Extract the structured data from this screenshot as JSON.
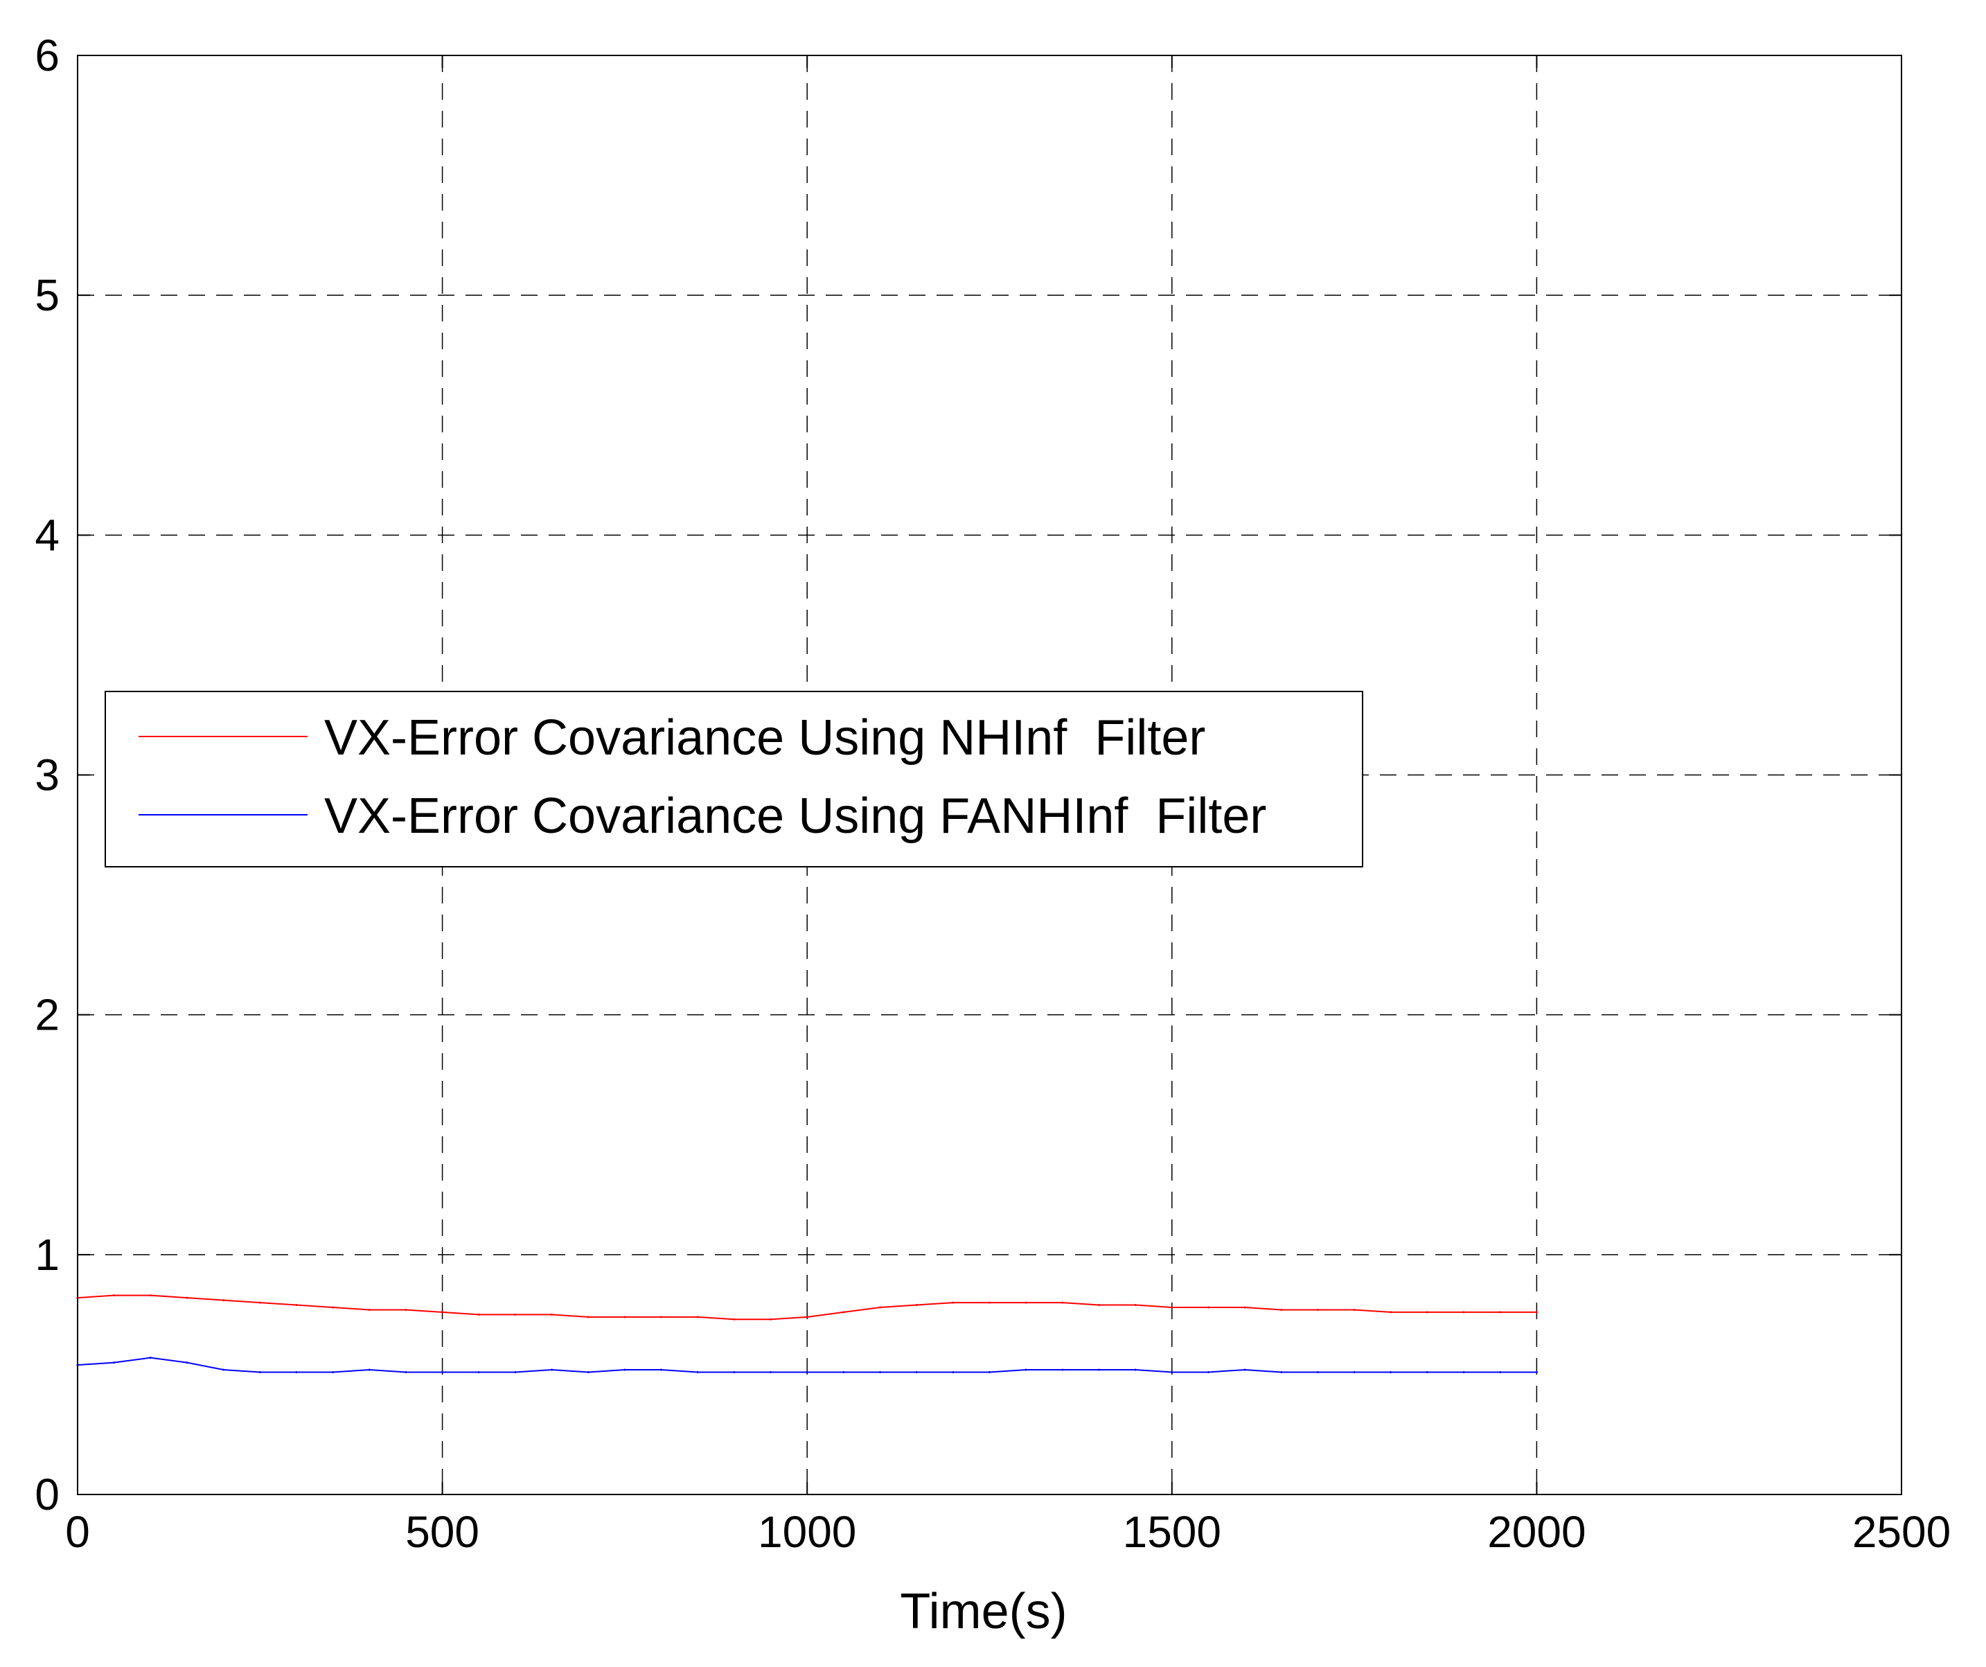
{
  "chart_data": {
    "type": "line",
    "title": "",
    "xlabel": "Time(s)",
    "ylabel": "",
    "xlim": [
      0,
      2500
    ],
    "ylim": [
      0,
      6
    ],
    "xticks": [
      0,
      500,
      1000,
      1500,
      2000,
      2500
    ],
    "yticks": [
      0,
      1,
      2,
      3,
      4,
      5,
      6
    ],
    "xtick_labels": [
      "0",
      "500",
      "1000",
      "1500",
      "2000",
      "2500"
    ],
    "ytick_labels": [
      "0",
      "1",
      "2",
      "3",
      "4",
      "5",
      "6"
    ],
    "grid": true,
    "legend_position": "middle-left",
    "series": [
      {
        "name": "VX-Error Covariance Using NHInf  Filter",
        "color": "#ff0000",
        "x": [
          0,
          50,
          100,
          150,
          200,
          250,
          300,
          350,
          400,
          450,
          500,
          550,
          600,
          650,
          700,
          750,
          800,
          850,
          900,
          950,
          1000,
          1050,
          1100,
          1150,
          1200,
          1250,
          1300,
          1350,
          1400,
          1450,
          1500,
          1550,
          1600,
          1650,
          1700,
          1750,
          1800,
          1850,
          1900,
          1950,
          2000
        ],
        "y": [
          0.82,
          0.83,
          0.83,
          0.82,
          0.81,
          0.8,
          0.79,
          0.78,
          0.77,
          0.77,
          0.76,
          0.75,
          0.75,
          0.75,
          0.74,
          0.74,
          0.74,
          0.74,
          0.73,
          0.73,
          0.74,
          0.76,
          0.78,
          0.79,
          0.8,
          0.8,
          0.8,
          0.8,
          0.79,
          0.79,
          0.78,
          0.78,
          0.78,
          0.77,
          0.77,
          0.77,
          0.76,
          0.76,
          0.76,
          0.76,
          0.76
        ]
      },
      {
        "name": "VX-Error Covariance Using FANHInf  Filter",
        "color": "#0000ff",
        "x": [
          0,
          50,
          100,
          150,
          200,
          250,
          300,
          350,
          400,
          450,
          500,
          550,
          600,
          650,
          700,
          750,
          800,
          850,
          900,
          950,
          1000,
          1050,
          1100,
          1150,
          1200,
          1250,
          1300,
          1350,
          1400,
          1450,
          1500,
          1550,
          1600,
          1650,
          1700,
          1750,
          1800,
          1850,
          1900,
          1950,
          2000
        ],
        "y": [
          0.54,
          0.55,
          0.57,
          0.55,
          0.52,
          0.51,
          0.51,
          0.51,
          0.52,
          0.51,
          0.51,
          0.51,
          0.51,
          0.52,
          0.51,
          0.52,
          0.52,
          0.51,
          0.51,
          0.51,
          0.51,
          0.51,
          0.51,
          0.51,
          0.51,
          0.51,
          0.52,
          0.52,
          0.52,
          0.52,
          0.51,
          0.51,
          0.52,
          0.51,
          0.51,
          0.51,
          0.51,
          0.51,
          0.51,
          0.51,
          0.51
        ]
      }
    ]
  }
}
